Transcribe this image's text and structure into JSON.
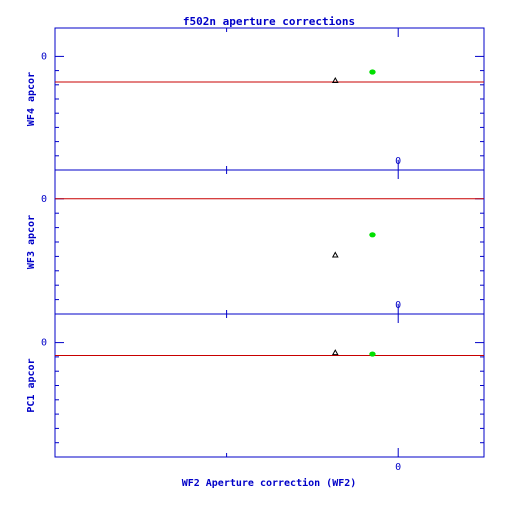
{
  "chart_data": {
    "type": "scatter",
    "title": "f502n aperture corrections",
    "xlabel": "WF2 Aperture correction (WF2)",
    "xlim": [
      -0.06,
      0.015
    ],
    "x_tick_labels": [
      "0"
    ],
    "grid": false,
    "colors": {
      "frame": "#0000c8",
      "reference_line": "#c80000",
      "triangle_point": "#000000",
      "filled_point": "#00e000"
    },
    "panels": [
      {
        "ylabel": "WF4 apcor",
        "ylim": [
          -0.04,
          0.01
        ],
        "y_tick_labels": [
          "0"
        ],
        "x_tick_labels_top": [],
        "reference_line_y": -0.009,
        "points": [
          {
            "marker": "triangle",
            "x": -0.011,
            "y": -0.0085
          },
          {
            "marker": "filled",
            "x": -0.0045,
            "y": -0.0055
          }
        ]
      },
      {
        "ylabel": "WF3 apcor",
        "ylim": [
          -0.04,
          0.01
        ],
        "y_tick_labels": [
          "0"
        ],
        "x_tick_labels_top": [
          "0"
        ],
        "reference_line_y": 0.0,
        "points": [
          {
            "marker": "triangle",
            "x": -0.011,
            "y": -0.0195
          },
          {
            "marker": "filled",
            "x": -0.0045,
            "y": -0.0125
          }
        ]
      },
      {
        "ylabel": "PC1 apcor",
        "ylim": [
          -0.04,
          0.01
        ],
        "y_tick_labels": [
          "0"
        ],
        "x_tick_labels_top": [
          "0"
        ],
        "reference_line_y": -0.0045,
        "points": [
          {
            "marker": "triangle",
            "x": -0.011,
            "y": -0.0035
          },
          {
            "marker": "filled",
            "x": -0.0045,
            "y": -0.004
          }
        ]
      }
    ]
  }
}
